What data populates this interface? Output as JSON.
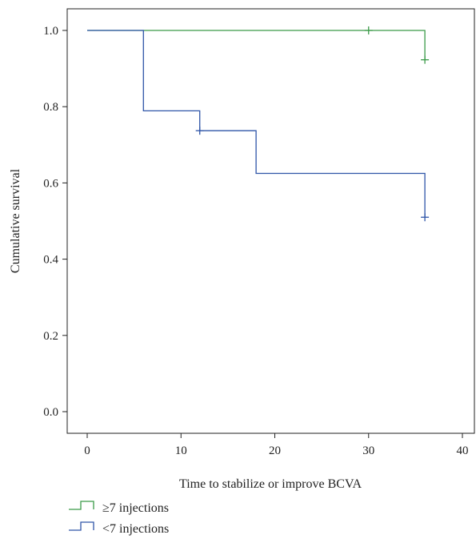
{
  "chart_data": {
    "type": "line",
    "title": "",
    "xlabel": "Time to stabilize or improve BCVA",
    "ylabel": "Cumulative survival",
    "xlim": [
      -2,
      42
    ],
    "ylim": [
      -0.05,
      1.07
    ],
    "x_ticks": [
      0,
      10,
      20,
      30,
      40
    ],
    "y_ticks": [
      0.0,
      0.2,
      0.4,
      0.6,
      0.8,
      1.0
    ],
    "x_tick_labels": [
      "0",
      "10",
      "20",
      "30",
      "40"
    ],
    "y_tick_labels": [
      "0.0",
      "0.2",
      "0.4",
      "0.6",
      "0.8",
      "1.0"
    ],
    "grid": false,
    "legend_position": "bottom-left",
    "series": [
      {
        "name": "≥7 injections",
        "color": "#3a9a48",
        "steps": [
          [
            0,
            1.0
          ],
          [
            36,
            1.0
          ],
          [
            36,
            0.923
          ]
        ],
        "censored": [
          [
            30,
            1.0
          ],
          [
            36,
            0.923
          ]
        ]
      },
      {
        "name": "<7 injections",
        "color": "#2f55a8",
        "steps": [
          [
            0,
            1.0
          ],
          [
            6,
            1.0
          ],
          [
            6,
            0.789
          ],
          [
            12,
            0.789
          ],
          [
            12,
            0.737
          ],
          [
            18,
            0.737
          ],
          [
            18,
            0.625
          ],
          [
            36,
            0.625
          ],
          [
            36,
            0.51
          ]
        ],
        "censored": [
          [
            12,
            0.737
          ],
          [
            36,
            0.51
          ]
        ]
      }
    ]
  }
}
